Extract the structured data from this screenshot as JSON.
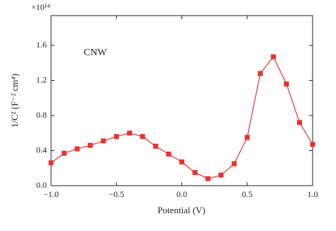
{
  "chart_data": {
    "type": "line",
    "x_label": "Potential (V)",
    "y_label": "1/C² (F⁻² cm⁴)",
    "y_multiplier": "×10¹⁴",
    "annotation": "CNW",
    "x": [
      -1.0,
      -0.9,
      -0.8,
      -0.7,
      -0.6,
      -0.5,
      -0.4,
      -0.3,
      -0.2,
      -0.1,
      0.0,
      0.1,
      0.2,
      0.3,
      0.4,
      0.5,
      0.6,
      0.7,
      0.8,
      0.9,
      1.0
    ],
    "series": [
      {
        "name": "CNW",
        "color": "#e8322d",
        "values": [
          0.26,
          0.37,
          0.42,
          0.46,
          0.51,
          0.56,
          0.6,
          0.56,
          0.45,
          0.36,
          0.27,
          0.15,
          0.08,
          0.12,
          0.25,
          0.55,
          1.28,
          1.47,
          1.16,
          0.72,
          0.47
        ]
      }
    ],
    "xlim": [
      -1.0,
      1.0
    ],
    "xticks": [
      {
        "value": -1.0,
        "label": "−1.0"
      },
      {
        "value": -0.5,
        "label": "−0.5"
      },
      {
        "value": 0,
        "label": "0.0"
      },
      0.5,
      {
        "value": 1,
        "label": "1.0"
      }
    ],
    "ylim": [
      0,
      1.94
    ],
    "yticks": [
      {
        "value": 0,
        "label": "0.0"
      },
      0.4,
      0.8,
      1.2,
      1.6
    ],
    "grid": false
  }
}
